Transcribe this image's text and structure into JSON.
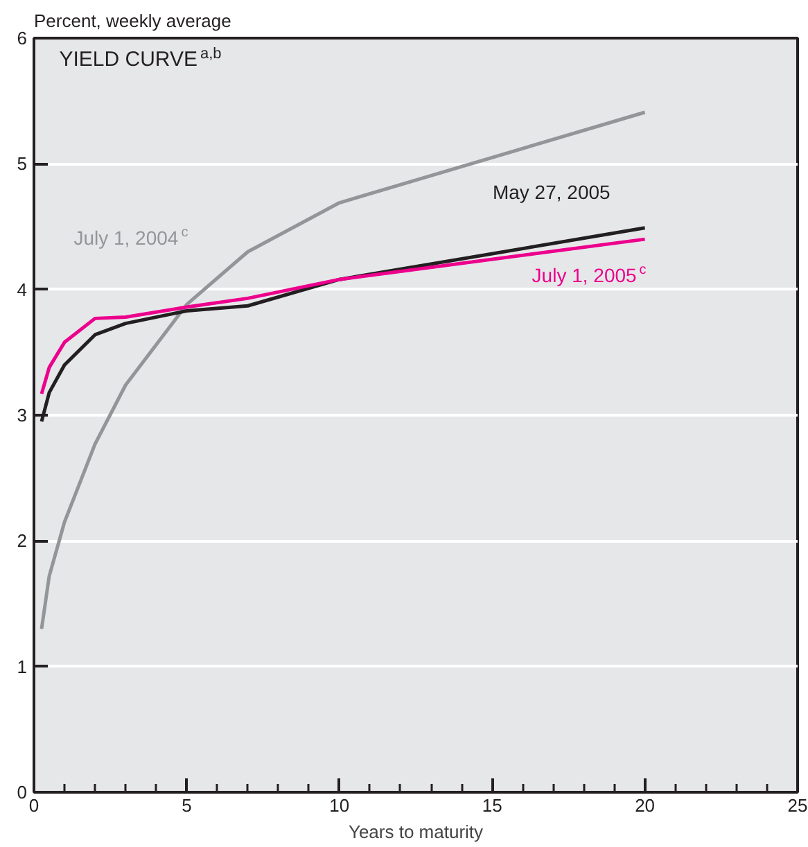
{
  "chart_data": {
    "type": "line",
    "title": "YIELD CURVE$^{a,b}$",
    "ylabel": "Percent, weekly average",
    "xlabel": "Years to maturity",
    "x": [
      0.25,
      0.5,
      1,
      2,
      3,
      5,
      7,
      10,
      20
    ],
    "series": [
      {
        "name": "July 1, 2004$^{c}$",
        "color": "#939598",
        "values": [
          1.3,
          1.72,
          2.15,
          2.77,
          3.24,
          3.88,
          4.3,
          4.69,
          5.41
        ]
      },
      {
        "name": "May 27, 2005",
        "color": "#231f20",
        "values": [
          2.95,
          3.18,
          3.4,
          3.64,
          3.73,
          3.83,
          3.87,
          4.08,
          4.49
        ]
      },
      {
        "name": "July 1, 2005$^{c}$",
        "color": "#ec008c",
        "values": [
          3.17,
          3.38,
          3.58,
          3.77,
          3.78,
          3.86,
          3.93,
          4.08,
          4.4
        ]
      }
    ],
    "xlim": [
      0,
      25
    ],
    "ylim": [
      0,
      6
    ],
    "xticks": [
      0,
      5,
      10,
      15,
      20,
      25
    ],
    "yticks": [
      0,
      1,
      2,
      3,
      4,
      5,
      6
    ],
    "grid": "y",
    "marker": "none",
    "line_style": "solid"
  }
}
